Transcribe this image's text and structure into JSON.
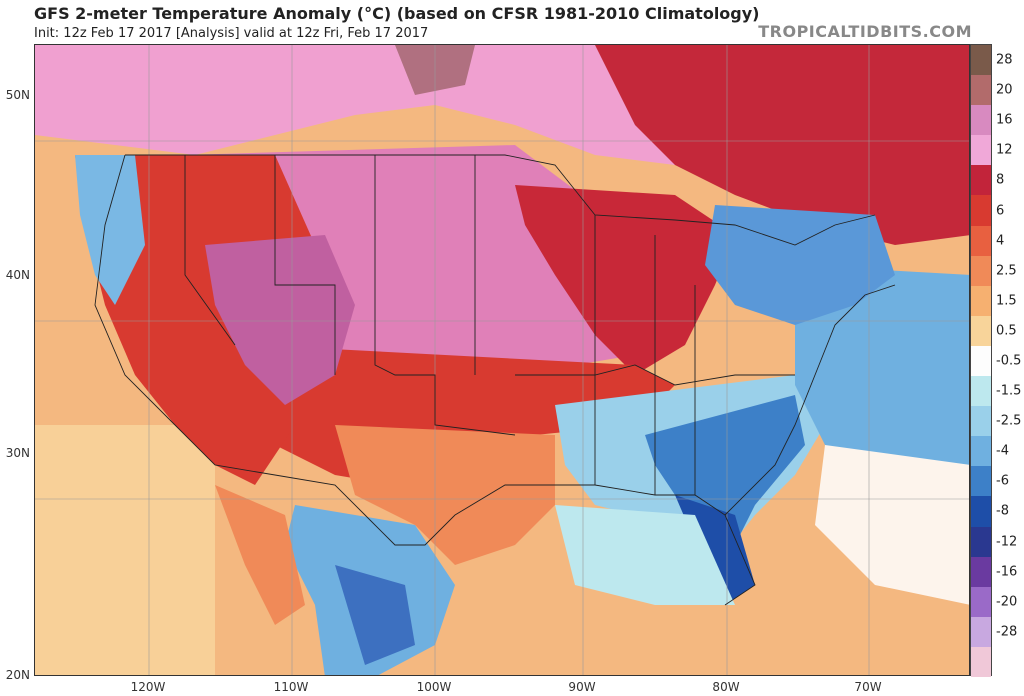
{
  "header": {
    "title": "GFS 2-meter Temperature Anomaly (°C) (based on CFSR 1981-2010 Climatology)",
    "init_line": "Init: 12z Feb 17 2017   [Analysis]   valid at 12z Fri, Feb 17 2017",
    "brand": "TROPICALTIDBITS.COM"
  },
  "axes": {
    "lat_labels": [
      "50N",
      "40N",
      "30N",
      "20N"
    ],
    "lon_labels": [
      "120W",
      "110W",
      "100W",
      "90W",
      "80W",
      "70W"
    ]
  },
  "colorbar": {
    "labels": [
      "28",
      "20",
      "16",
      "12",
      "8",
      "6",
      "4",
      "2.5",
      "1.5",
      "0.5",
      "-0.5",
      "-1.5",
      "-2.5",
      "-4",
      "-6",
      "-8",
      "-12",
      "-16",
      "-20",
      "-28"
    ],
    "colors": [
      "#7a5a4a",
      "#b26b6b",
      "#d88ac0",
      "#f0a8d8",
      "#c2243a",
      "#d83a30",
      "#e86040",
      "#f08a58",
      "#f6b070",
      "#f8d49a",
      "#fdfdfd",
      "#bde8ee",
      "#9ad0ea",
      "#6fb0e0",
      "#3d80c8",
      "#1e4ea8",
      "#2a3890",
      "#6a3aa0",
      "#9a6ac8",
      "#c8a8e0",
      "#f0c8d8"
    ]
  },
  "map_regions": {
    "warm_plains": "Northern Plains and Upper Midwest",
    "warm_west": "Southwest",
    "cold_southeast": "Southeast and Florida",
    "cold_northeast": "Northeast",
    "cold_mexico": "Mexico interior"
  }
}
